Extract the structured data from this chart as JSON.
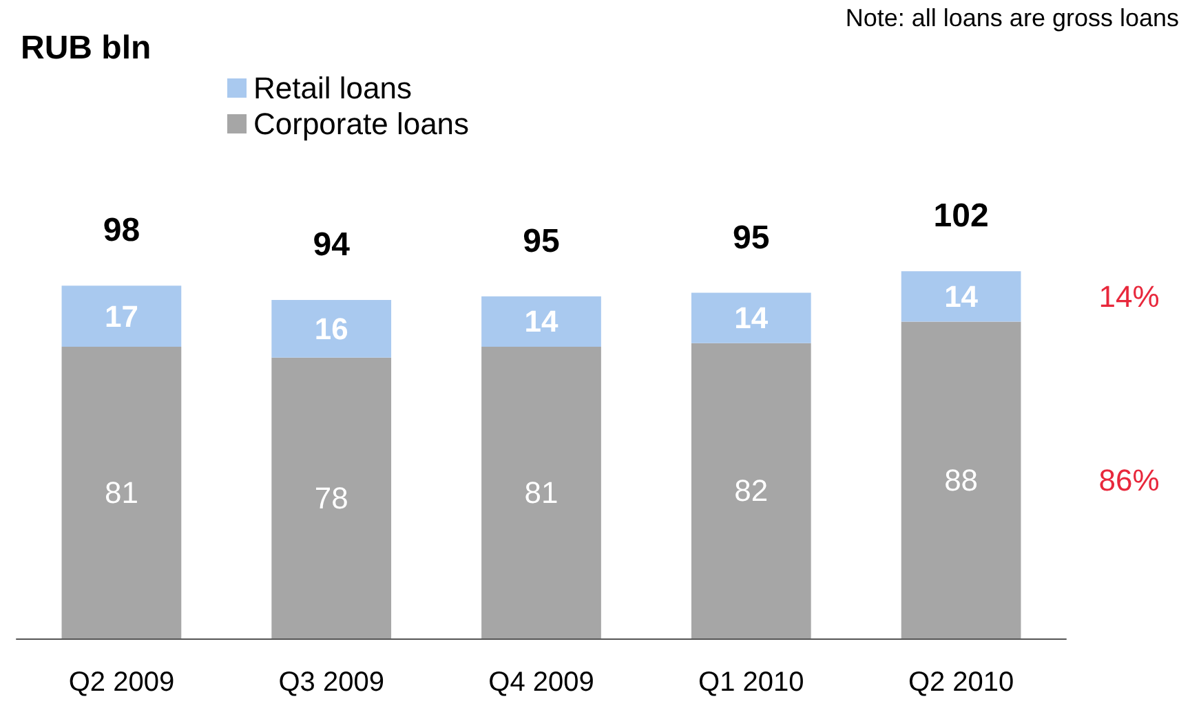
{
  "chart_data": {
    "type": "bar",
    "title": "RUB bln",
    "stacked": true,
    "data_labels": true,
    "legend": "top left",
    "categories": [
      "Q2 2009",
      "Q3 2009",
      "Q4 2009",
      "Q1 2010",
      "Q2 2010"
    ],
    "series": [
      {
        "name": "Corporate loans",
        "color": "#a6a6a6",
        "values": [
          81,
          78,
          81,
          82,
          88
        ]
      },
      {
        "name": "Retail loans",
        "color": "#a9c9ef",
        "values": [
          17,
          16,
          14,
          14,
          14
        ]
      }
    ],
    "totals": [
      "98",
      "94",
      "95",
      "95",
      "102"
    ],
    "annotations": [
      "Note: all loans are gross loans",
      "14%",
      "86%"
    ]
  }
}
